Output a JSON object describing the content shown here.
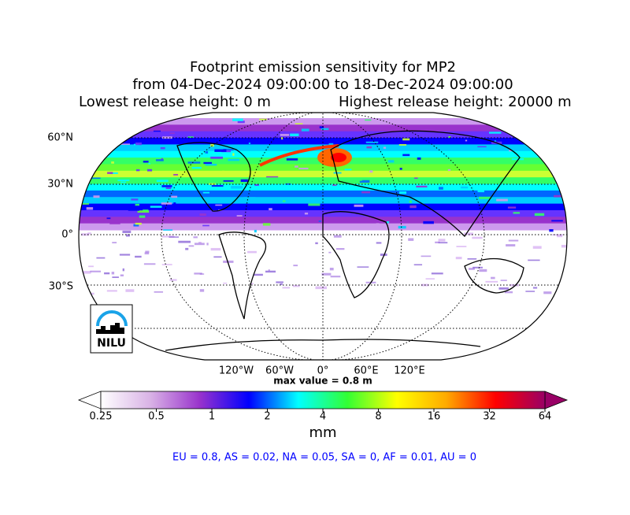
{
  "title": {
    "line1": "Footprint emission sensitivity for MP2",
    "line2": "from 04-Dec-2024 09:00:00 to 18-Dec-2024 09:00:00",
    "lowest": "Lowest release height: 0 m",
    "highest": "Highest release height: 20000 m"
  },
  "map": {
    "lat_labels": [
      "60°N",
      "30°N",
      "0°",
      "30°S"
    ],
    "lon_labels": [
      "120°W",
      "60°W",
      "0°",
      "60°E",
      "120°E"
    ],
    "logo": "NILU",
    "max_value_label": "max value = 0.8 m"
  },
  "colorbar": {
    "ticks": [
      0.25,
      0.5,
      1,
      2,
      4,
      8,
      16,
      32,
      64
    ],
    "unit": "mm",
    "colors": [
      "#ffffff",
      "#d9b3e6",
      "#9933cc",
      "#0000ff",
      "#00ffff",
      "#33ff33",
      "#ffff00",
      "#ffaa00",
      "#ff0000",
      "#990066"
    ]
  },
  "footer": "EU = 0.8,  AS = 0.02,  NA = 0.05,  SA = 0,  AF = 0.01,  AU = 0"
}
